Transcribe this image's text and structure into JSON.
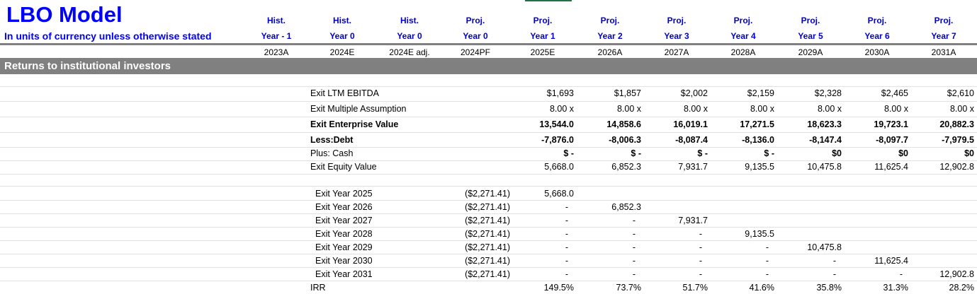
{
  "sheet": {
    "title": "LBO Model",
    "subtitle": "In units of currency unless otherwise stated",
    "section_title": "Returns to institutional investors"
  },
  "columns": [
    {
      "type": "Hist.",
      "label": "Year - 1",
      "year": "2023A"
    },
    {
      "type": "Hist.",
      "label": "Year 0",
      "year": "2024E"
    },
    {
      "type": "Hist.",
      "label": "Year 0",
      "year": "2024E adj."
    },
    {
      "type": "Proj.",
      "label": "Year 0",
      "year": "2024PF"
    },
    {
      "type": "Proj.",
      "label": "Year 1",
      "year": "2025E"
    },
    {
      "type": "Proj.",
      "label": "Year 2",
      "year": "2026A"
    },
    {
      "type": "Proj.",
      "label": "Year 3",
      "year": "2027A"
    },
    {
      "type": "Proj.",
      "label": "Year 4",
      "year": "2028A"
    },
    {
      "type": "Proj.",
      "label": "Year 5",
      "year": "2029A"
    },
    {
      "type": "Proj.",
      "label": "Year 6",
      "year": "2030A"
    },
    {
      "type": "Proj.",
      "label": "Year 7",
      "year": "2031A"
    }
  ],
  "returns": {
    "exit_ltm_ebitda": {
      "label": "Exit LTM EBITDA",
      "values": [
        "$1,693",
        "$1,857",
        "$2,002",
        "$2,159",
        "$2,328",
        "$2,465",
        "$2,610"
      ]
    },
    "exit_multiple": {
      "label": "Exit Multiple Assumption",
      "values": [
        "8.00 x",
        "8.00 x",
        "8.00 x",
        "8.00 x",
        "8.00 x",
        "8.00 x",
        "8.00 x"
      ]
    },
    "exit_ev": {
      "label": "Exit Enterprise Value",
      "values": [
        "13,544.0",
        "14,858.6",
        "16,019.1",
        "17,271.5",
        "18,623.3",
        "19,723.1",
        "20,882.3"
      ]
    },
    "less_debt": {
      "label": "Less:Debt",
      "values": [
        "-7,876.0",
        "-8,006.3",
        "-8,087.4",
        "-8,136.0",
        "-8,147.4",
        "-8,097.7",
        "-7,979.5"
      ]
    },
    "plus_cash": {
      "label": "Plus: Cash",
      "values": [
        "$ -",
        "$ -",
        "$ -",
        "$ -",
        "$0",
        "$0",
        "$0"
      ]
    },
    "exit_equity": {
      "label": "Exit Equity Value",
      "values": [
        "5,668.0",
        "6,852.3",
        "7,931.7",
        "9,135.5",
        "10,475.8",
        "11,625.4",
        "12,902.8"
      ]
    }
  },
  "exit_years": [
    {
      "label": "Exit Year 2025",
      "investment": "($2,271.41)",
      "values": [
        "5,668.0",
        "",
        "",
        "",
        "",
        "",
        ""
      ]
    },
    {
      "label": "Exit Year 2026",
      "investment": "($2,271.41)",
      "values": [
        "-",
        "6,852.3",
        "",
        "",
        "",
        "",
        ""
      ]
    },
    {
      "label": "Exit Year 2027",
      "investment": "($2,271.41)",
      "values": [
        "-",
        "-",
        "7,931.7",
        "",
        "",
        "",
        ""
      ]
    },
    {
      "label": "Exit Year 2028",
      "investment": "($2,271.41)",
      "values": [
        "-",
        "-",
        "-",
        "9,135.5",
        "",
        "",
        ""
      ]
    },
    {
      "label": "Exit Year 2029",
      "investment": "($2,271.41)",
      "values": [
        "-",
        "-",
        "-",
        "-",
        "10,475.8",
        "",
        ""
      ]
    },
    {
      "label": "Exit Year 2030",
      "investment": "($2,271.41)",
      "values": [
        "-",
        "-",
        "-",
        "-",
        "-",
        "11,625.4",
        ""
      ]
    },
    {
      "label": "Exit Year 2031",
      "investment": "($2,271.41)",
      "values": [
        "-",
        "-",
        "-",
        "-",
        "-",
        "-",
        "12,902.8"
      ]
    }
  ],
  "irr": {
    "label": "IRR",
    "values": [
      "149.5%",
      "73.7%",
      "51.7%",
      "41.6%",
      "35.8%",
      "31.3%",
      "28.2%"
    ]
  },
  "colors": {
    "title": "#0000ff",
    "header": "#0000cc",
    "band": "#808080"
  }
}
